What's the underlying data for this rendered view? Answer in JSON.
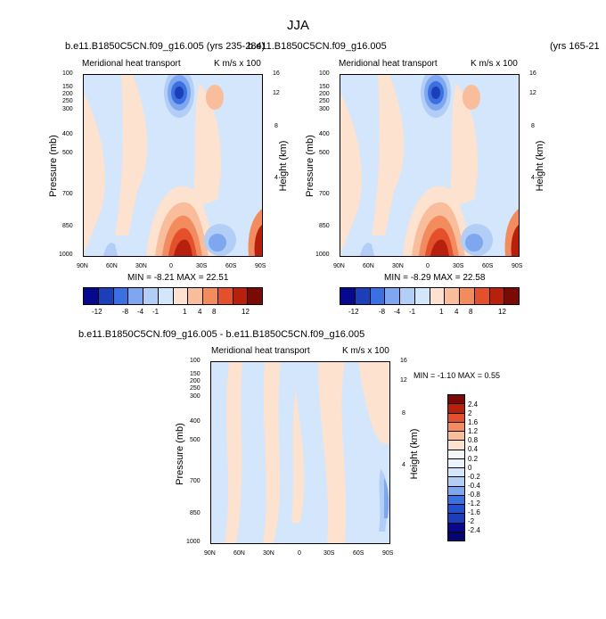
{
  "page": {
    "title": "JJA"
  },
  "chart_data": [
    {
      "type": "heatmap",
      "experiment": "b.e11.B1850C5CN.f09_g16.005",
      "years": "(yrs 235-284)",
      "header": "b.e11.B1850C5CN.f09_g16.005 (yrs 235-284)",
      "left_label": "Meridional heat transport",
      "right_label": "K m/s x 100",
      "ylabel": "Pressure (mb)",
      "ylabel_right": "Height (km)",
      "xticks": [
        "90N",
        "60N",
        "30N",
        "0",
        "30S",
        "60S",
        "90S"
      ],
      "yticks": [
        "100",
        "150",
        "200",
        "250",
        "300",
        "400",
        "500",
        "700",
        "850",
        "1000"
      ],
      "height_ticks": [
        "16",
        "12",
        "8",
        "4"
      ],
      "stats": "MIN =  -8.21   MAX =  22.51",
      "min": -8.21,
      "max": 22.51,
      "levels": [
        "-12",
        "-8",
        "-4",
        "-1",
        "1",
        "4",
        "8",
        "12"
      ]
    },
    {
      "type": "heatmap",
      "experiment": "b.e11.B1850C5CN.f09_g16.005",
      "years": "(yrs 165-21",
      "header": "b.e11.B1850C5CN.f09_g16.005",
      "header_right": "(yrs 165-21",
      "left_label": "Meridional heat transport",
      "right_label": "K m/s x 100",
      "ylabel": "Pressure (mb)",
      "ylabel_right": "Height (km)",
      "xticks": [
        "90N",
        "60N",
        "30N",
        "0",
        "30S",
        "60S",
        "90S"
      ],
      "yticks": [
        "100",
        "150",
        "200",
        "250",
        "300",
        "400",
        "500",
        "700",
        "850",
        "1000"
      ],
      "height_ticks": [
        "16",
        "12",
        "8",
        "4"
      ],
      "stats": "MIN =  -8.29   MAX =  22.58",
      "min": -8.29,
      "max": 22.58,
      "levels": [
        "-12",
        "-8",
        "-4",
        "-1",
        "1",
        "4",
        "8",
        "12"
      ]
    },
    {
      "type": "heatmap",
      "header": "b.e11.B1850C5CN.f09_g16.005 - b.e11.B1850C5CN.f09_g16.005",
      "left_label": "Meridional heat transport",
      "right_label": "K m/s x 100",
      "ylabel": "Pressure (mb)",
      "ylabel_right": "Height (km)",
      "xticks": [
        "90N",
        "60N",
        "30N",
        "0",
        "30S",
        "60S",
        "90S"
      ],
      "yticks": [
        "100",
        "150",
        "200",
        "250",
        "300",
        "400",
        "500",
        "700",
        "850",
        "1000"
      ],
      "height_ticks": [
        "16",
        "12",
        "8",
        "4"
      ],
      "stats": "MIN =  -1.10   MAX =   0.55",
      "min": -1.1,
      "max": 0.55,
      "levels": [
        "2.4",
        "2",
        "1.6",
        "1.2",
        "0.8",
        "0.4",
        "0.2",
        "0",
        "-0.2",
        "-0.4",
        "-0.8",
        "-1.2",
        "-1.6",
        "-2",
        "-2.4"
      ]
    }
  ],
  "colors": {
    "abs_bar": [
      "#08088c",
      "#1a3fb8",
      "#3c6fe0",
      "#7ea7f0",
      "#b2cdf6",
      "#d4e6fb",
      "#fde2cf",
      "#f9bd9b",
      "#f28b5d",
      "#e3502b",
      "#b8200e",
      "#7a0a06"
    ],
    "diff_bar": [
      "#7a0a06",
      "#b8200e",
      "#e3502b",
      "#f28b5d",
      "#f9bd9b",
      "#fde2cf",
      "#f5f5f5",
      "#d4e6fb",
      "#b2cdf6",
      "#7ea7f0",
      "#3c6fe0",
      "#1a3fb8",
      "#08088c"
    ]
  }
}
